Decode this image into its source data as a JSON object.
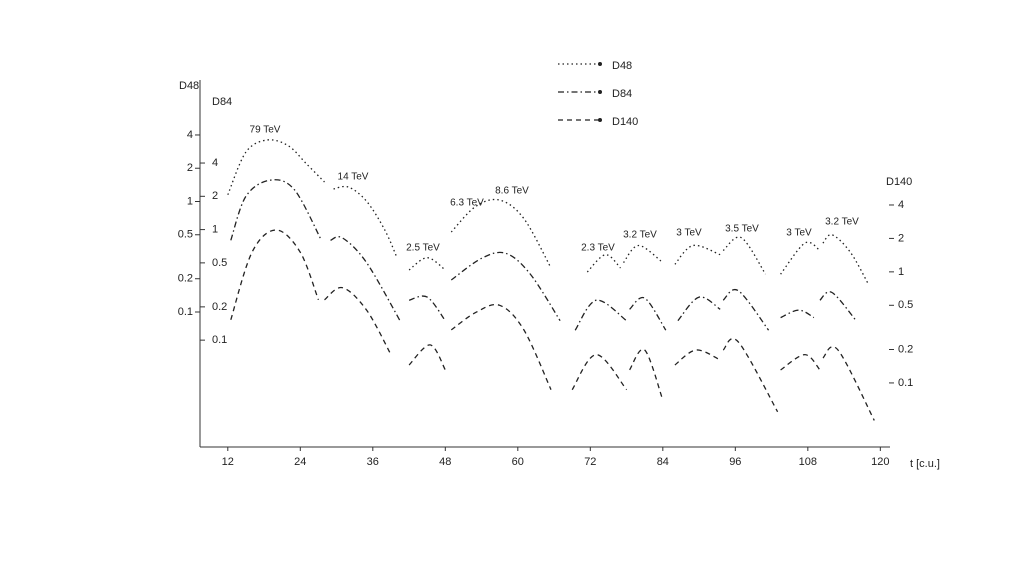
{
  "chart_data": {
    "type": "line",
    "scale": "log",
    "xlabel": "t [c.u.]",
    "xlim": [
      7.4,
      121.6
    ],
    "xticks": [
      12,
      24,
      36,
      48,
      60,
      72,
      84,
      96,
      108,
      120
    ],
    "ylabel": "D48",
    "ylim": [
      0.006,
      9.2
    ],
    "yticks": [
      4,
      2,
      1,
      0.5,
      0.2,
      0.1
    ],
    "y3label": "D84",
    "y3lim": [
      0.0108,
      16.5
    ],
    "y3ticks": [
      4,
      2,
      1,
      0.5,
      0.2,
      0.1
    ],
    "y2label": "D140",
    "y2lim": [
      0.0265,
      39.1
    ],
    "y2ticks": [
      4,
      2,
      1,
      0.5,
      0.2,
      0.1
    ],
    "legend": "top",
    "annotations": [
      "79 TeV",
      "14 TeV",
      "2.5 TeV",
      "6.3 TeV",
      "8.6 TeV",
      "2.3 TeV",
      "3.2 TeV",
      "3 TeV",
      "3.5 TeV",
      "3 TeV",
      "3.2 TeV"
    ],
    "series": [
      {
        "name": "D48",
        "axis": "y",
        "color": "#222",
        "dash": "1.5,3",
        "x": [
          12,
          15,
          18.5,
          22,
          25,
          28,
          null,
          29.5,
          32,
          35,
          38,
          40,
          null,
          42,
          45,
          48,
          null,
          49,
          53,
          57,
          61,
          65.5,
          null,
          71.5,
          74.5,
          77,
          null,
          77.5,
          80,
          84,
          null,
          86,
          89,
          93.5,
          null,
          94,
          97,
          101,
          null,
          103.5,
          107.5,
          110,
          null,
          110.5,
          112,
          115,
          118
        ],
        "values": [
          1.15,
          2.8,
          3.6,
          3.2,
          2.2,
          1.5,
          null,
          1.3,
          1.35,
          1.0,
          0.55,
          0.31,
          null,
          0.24,
          0.31,
          0.24,
          null,
          0.53,
          0.9,
          1.03,
          0.7,
          0.25,
          null,
          0.23,
          0.33,
          0.25,
          null,
          0.28,
          0.4,
          0.28,
          null,
          0.27,
          0.4,
          0.33,
          null,
          0.36,
          0.47,
          0.22,
          null,
          0.22,
          0.42,
          0.36,
          null,
          0.42,
          0.5,
          0.35,
          0.18
        ]
      },
      {
        "name": "D84",
        "axis": "y3",
        "color": "#222",
        "dash": "6,3,1.5,3",
        "x": [
          12.5,
          15,
          19,
          23,
          27.5,
          null,
          29,
          31,
          35,
          40.5,
          null,
          42,
          45,
          48,
          null,
          49,
          54,
          58,
          62,
          67,
          null,
          69.5,
          73,
          78,
          null,
          78.5,
          81,
          84.5,
          null,
          86.5,
          90,
          93.5,
          null,
          94,
          96.5,
          101.5,
          null,
          103.5,
          106.5,
          109,
          null,
          110,
          112,
          116
        ],
        "values": [
          0.8,
          2.0,
          2.8,
          2.3,
          0.8,
          null,
          0.8,
          0.84,
          0.5,
          0.15,
          null,
          0.23,
          0.245,
          0.15,
          null,
          0.35,
          0.55,
          0.61,
          0.4,
          0.15,
          null,
          0.123,
          0.23,
          0.15,
          null,
          0.19,
          0.24,
          0.123,
          null,
          0.15,
          0.245,
          0.19,
          null,
          0.23,
          0.28,
          0.123,
          null,
          0.16,
          0.187,
          0.16,
          null,
          0.23,
          0.27,
          0.15
        ]
      },
      {
        "name": "D140",
        "axis": "y2",
        "color": "#222",
        "dash": "5,4",
        "x": [
          12.5,
          16,
          20,
          24,
          27,
          null,
          28,
          31,
          35,
          39,
          null,
          42,
          45.5,
          48,
          null,
          49,
          53,
          57,
          61,
          65.5,
          null,
          69,
          73,
          78,
          null,
          78.5,
          81,
          84,
          null,
          86,
          89.5,
          93.5,
          null,
          94,
          96.5,
          103,
          null,
          103.5,
          107.5,
          110,
          null,
          110.5,
          113,
          119
        ],
        "values": [
          0.37,
          1.5,
          2.38,
          1.5,
          0.56,
          null,
          0.56,
          0.72,
          0.45,
          0.18,
          null,
          0.145,
          0.22,
          0.131,
          null,
          0.3,
          0.43,
          0.5,
          0.3,
          0.087,
          null,
          0.087,
          0.18,
          0.087,
          null,
          0.131,
          0.198,
          0.07,
          null,
          0.145,
          0.198,
          0.161,
          null,
          0.198,
          0.234,
          0.055,
          null,
          0.131,
          0.18,
          0.131,
          null,
          0.168,
          0.198,
          0.046
        ]
      }
    ]
  }
}
